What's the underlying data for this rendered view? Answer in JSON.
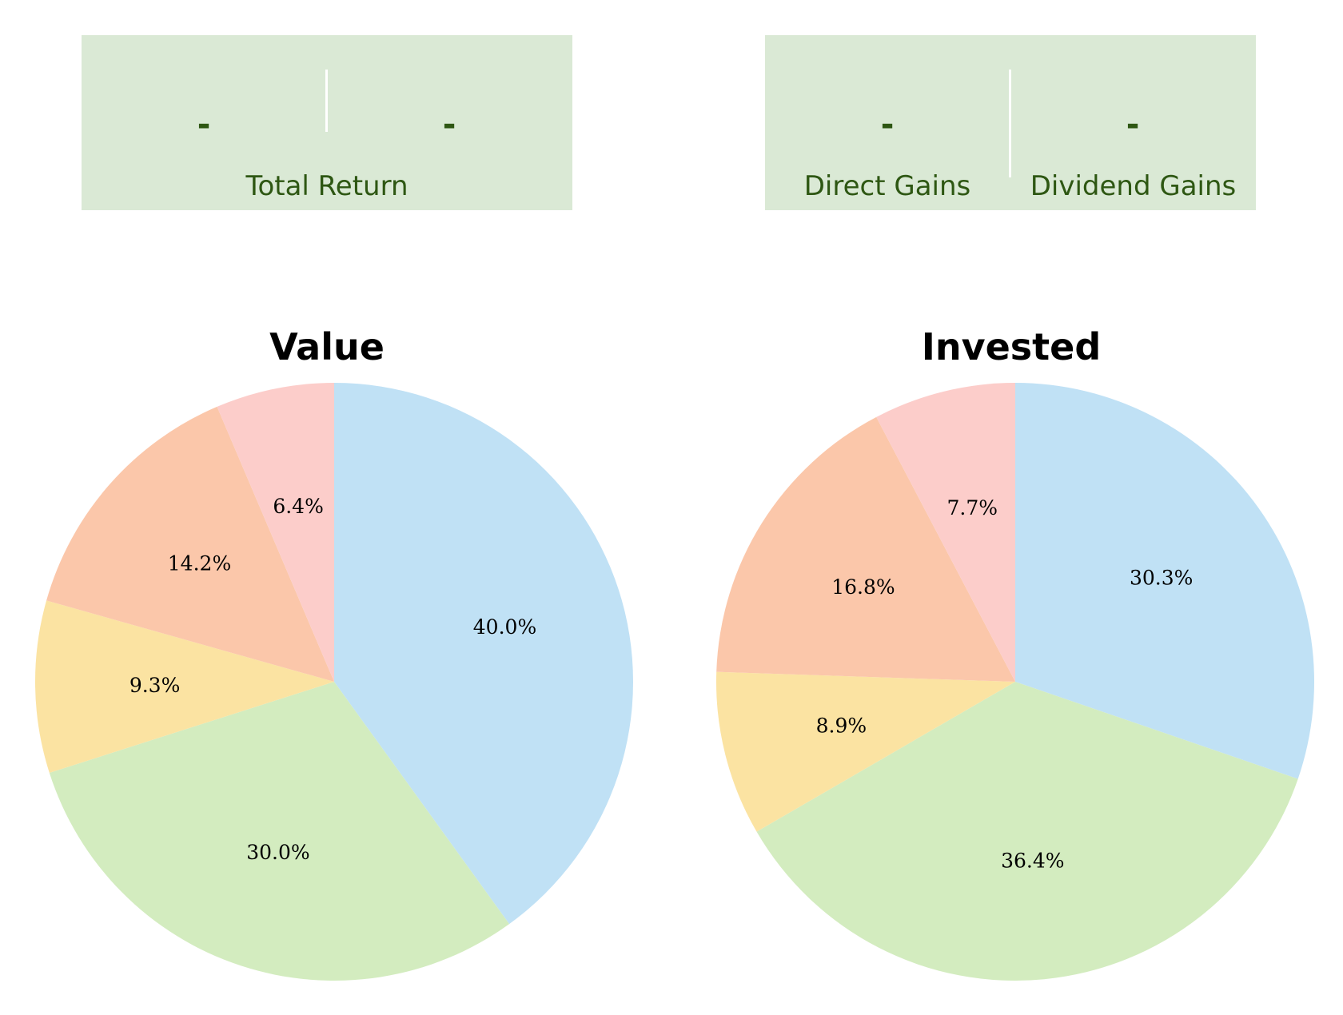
{
  "stats_left": {
    "value_1": "-",
    "value_2": "-",
    "label": "Total Return"
  },
  "stats_right": {
    "value_1": "-",
    "value_2": "-",
    "label_1": "Direct Gains",
    "label_2": "Dividend Gains"
  },
  "colors": {
    "stat_box_bg": "#dae9d5",
    "stat_text": "#2e5713",
    "slices": [
      "#c0e1f5",
      "#d3ecbf",
      "#fbe3a2",
      "#fbc7aa",
      "#fccdca"
    ]
  },
  "chart_data": [
    {
      "type": "pie",
      "title": "Value",
      "values": [
        40.0,
        30.0,
        9.3,
        14.2,
        6.4
      ],
      "labels": [
        "40.0%",
        "30.0%",
        "9.3%",
        "14.2%",
        "6.4%"
      ],
      "start_angle": "12 o'clock",
      "direction": "clockwise",
      "legend": "none"
    },
    {
      "type": "pie",
      "title": "Invested",
      "values": [
        30.3,
        36.4,
        8.9,
        16.8,
        7.7
      ],
      "labels": [
        "30.3%",
        "36.4%",
        "8.9%",
        "16.8%",
        "7.7%"
      ],
      "start_angle": "12 o'clock",
      "direction": "clockwise",
      "legend": "none"
    }
  ]
}
